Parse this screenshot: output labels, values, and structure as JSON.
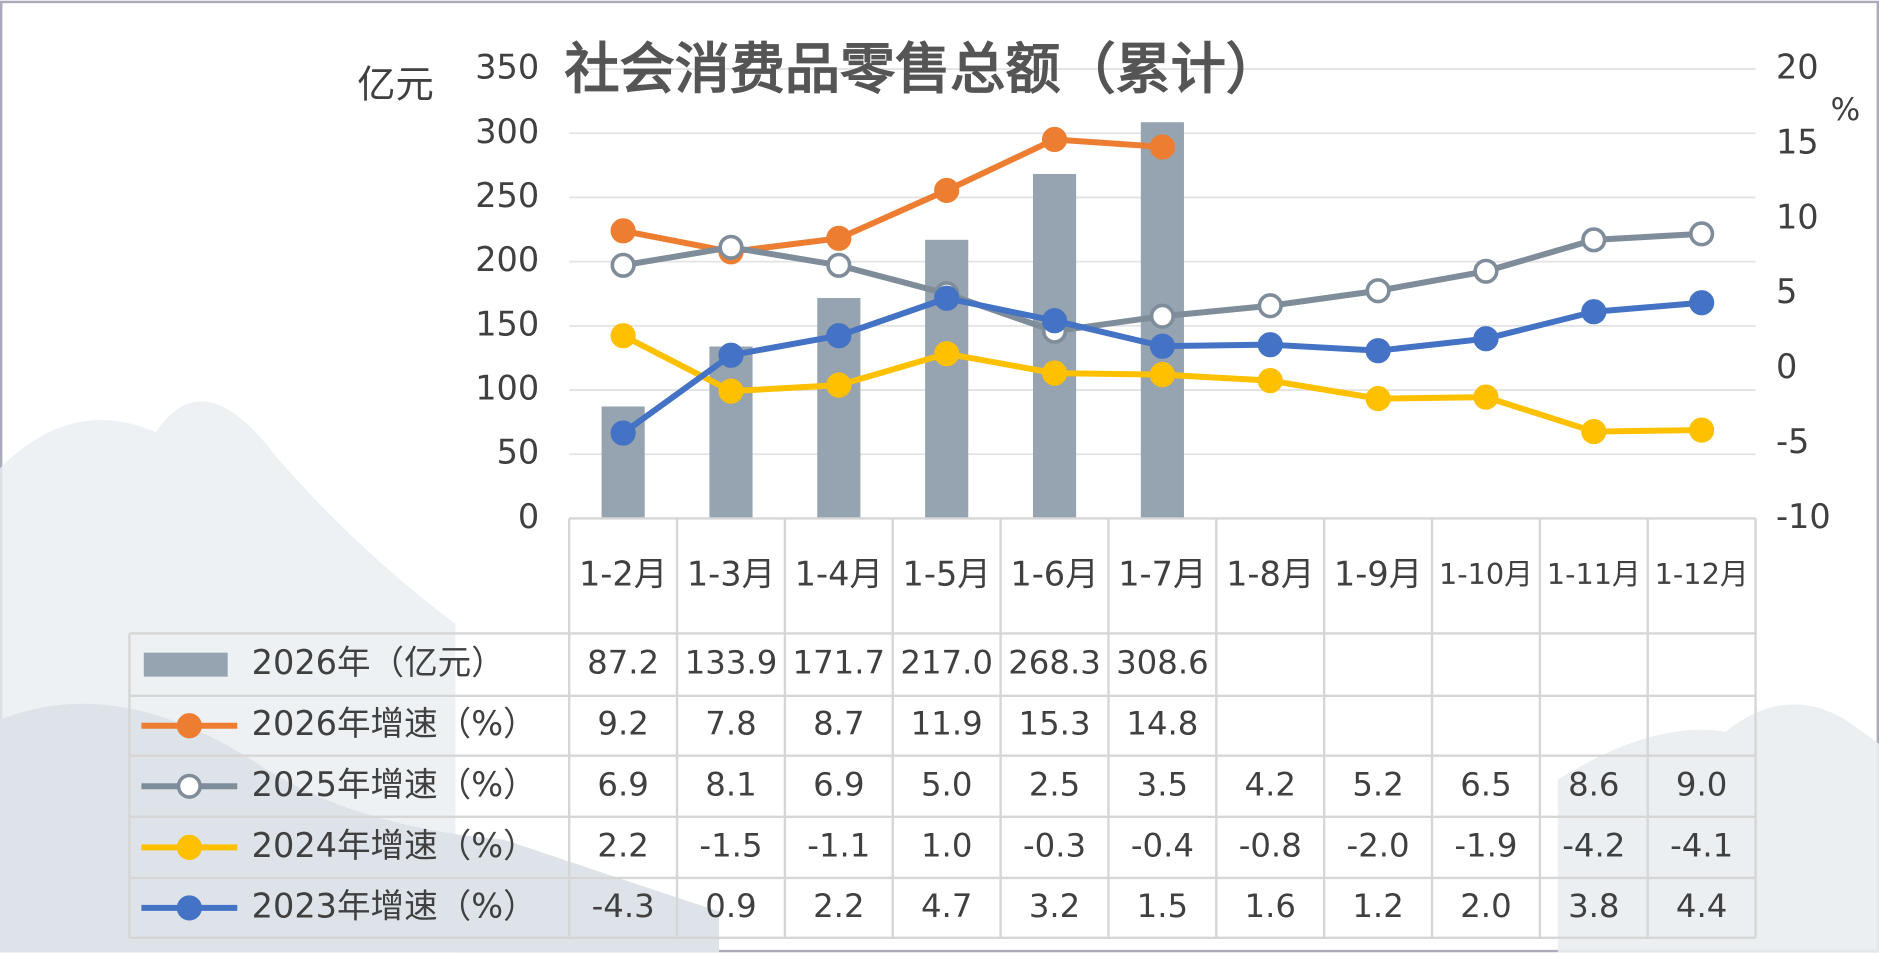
{
  "chart_data": {
    "type": "combo",
    "title": "社会消费品零售总额（累计）",
    "y_label": "亿元",
    "y2_label": "%",
    "categories": [
      "1-2月",
      "1-3月",
      "1-4月",
      "1-5月",
      "1-6月",
      "1-7月",
      "1-8月",
      "1-9月",
      "1-10月",
      "1-11月",
      "1-12月"
    ],
    "ylim": [
      0,
      350
    ],
    "yticks": [
      0,
      50,
      100,
      150,
      200,
      250,
      300,
      350
    ],
    "y2lim": [
      -10,
      20
    ],
    "y2ticks": [
      -10,
      -5,
      0,
      5,
      10,
      15,
      20
    ],
    "grid": true,
    "series": [
      {
        "name": "2026年（亿元）",
        "type": "bar",
        "color": "#96a3b0",
        "values": [
          87.2,
          133.9,
          171.7,
          217.0,
          268.3,
          308.6,
          null,
          null,
          null,
          null,
          null
        ],
        "value_labels": [
          "87.2",
          "133.9",
          "171.7",
          "217.0",
          "268.3",
          "308.6",
          null,
          null,
          null,
          null,
          null
        ]
      },
      {
        "name": "2026年增速（%）",
        "type": "line",
        "axis": "y2",
        "color": "#ed7d31",
        "marker": "filled",
        "values": [
          9.2,
          7.8,
          8.7,
          11.9,
          15.3,
          14.8,
          null,
          null,
          null,
          null,
          null
        ],
        "value_labels": [
          "9.2",
          "7.8",
          "8.7",
          "11.9",
          "15.3",
          "14.8",
          null,
          null,
          null,
          null,
          null
        ]
      },
      {
        "name": "2025年增速（%）",
        "type": "line",
        "axis": "y2",
        "color": "#7f8c99",
        "marker": "hollow",
        "values": [
          6.9,
          8.1,
          6.9,
          5.0,
          2.5,
          3.5,
          4.2,
          5.2,
          6.5,
          8.6,
          9.0
        ],
        "value_labels": [
          "6.9",
          "8.1",
          "6.9",
          "5.0",
          "2.5",
          "3.5",
          "4.2",
          "5.2",
          "6.5",
          "8.6",
          "9.0"
        ]
      },
      {
        "name": "2024年增速（%）",
        "type": "line",
        "axis": "y2",
        "color": "#ffc000",
        "marker": "filled",
        "values": [
          2.2,
          -1.5,
          -1.1,
          1.0,
          -0.3,
          -0.4,
          -0.8,
          -2.0,
          -1.9,
          -4.2,
          -4.1
        ],
        "value_labels": [
          "2.2",
          "-1.5",
          "-1.1",
          "1.0",
          "-0.3",
          "-0.4",
          "-0.8",
          "-2.0",
          "-1.9",
          "-4.2",
          "-4.1"
        ]
      },
      {
        "name": "2023年增速（%）",
        "type": "line",
        "axis": "y2",
        "color": "#4472c4",
        "marker": "filled",
        "values": [
          -4.3,
          0.9,
          2.2,
          4.7,
          3.2,
          1.5,
          1.6,
          1.2,
          2.0,
          3.8,
          4.4
        ],
        "value_labels": [
          "-4.3",
          "0.9",
          "2.2",
          "4.7",
          "3.2",
          "1.5",
          "1.6",
          "1.2",
          "2.0",
          "3.8",
          "4.4"
        ]
      }
    ]
  }
}
